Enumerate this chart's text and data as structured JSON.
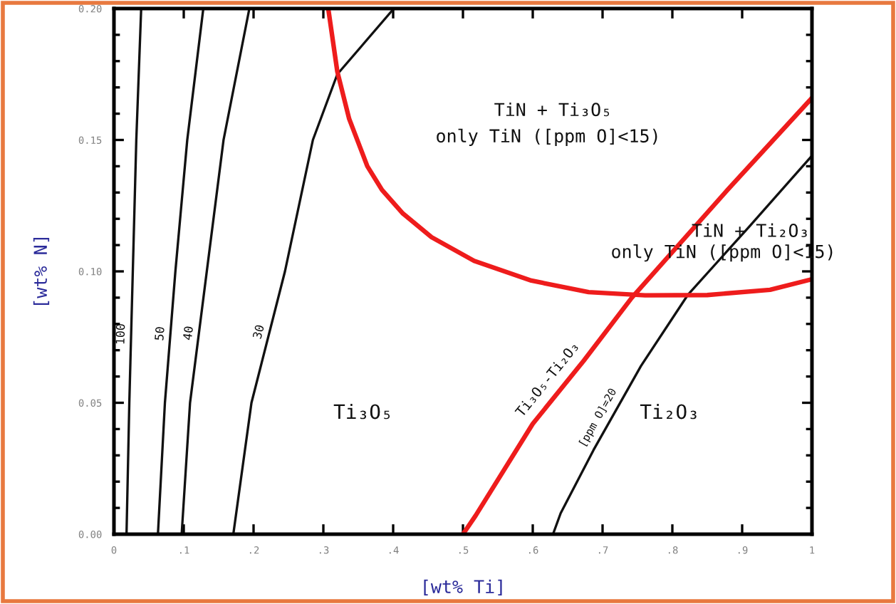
{
  "chart_data": {
    "type": "line",
    "xlabel": "[wt% Ti]",
    "ylabel": "[wt% N]",
    "xlim": [
      0,
      1
    ],
    "ylim": [
      0,
      0.2
    ],
    "xticks": [
      {
        "value": 0,
        "label": "0"
      },
      {
        "value": 0.1,
        "label": ".1"
      },
      {
        "value": 0.2,
        "label": ".2"
      },
      {
        "value": 0.3,
        "label": ".3"
      },
      {
        "value": 0.4,
        "label": ".4"
      },
      {
        "value": 0.5,
        "label": ".5"
      },
      {
        "value": 0.6,
        "label": ".6"
      },
      {
        "value": 0.7,
        "label": ".7"
      },
      {
        "value": 0.8,
        "label": ".8"
      },
      {
        "value": 0.9,
        "label": ".9"
      },
      {
        "value": 1,
        "label": "1"
      }
    ],
    "yticks": [
      {
        "value": 0,
        "label": "0.00"
      },
      {
        "value": 0.01,
        "label": null
      },
      {
        "value": 0.02,
        "label": null
      },
      {
        "value": 0.03,
        "label": null
      },
      {
        "value": 0.04,
        "label": null
      },
      {
        "value": 0.05,
        "label": "0.05"
      },
      {
        "value": 0.06,
        "label": null
      },
      {
        "value": 0.07,
        "label": null
      },
      {
        "value": 0.08,
        "label": null
      },
      {
        "value": 0.09,
        "label": null
      },
      {
        "value": 0.1,
        "label": "0.10"
      },
      {
        "value": 0.11,
        "label": null
      },
      {
        "value": 0.12,
        "label": null
      },
      {
        "value": 0.13,
        "label": null
      },
      {
        "value": 0.14,
        "label": null
      },
      {
        "value": 0.15,
        "label": "0.15"
      },
      {
        "value": 0.16,
        "label": null
      },
      {
        "value": 0.17,
        "label": null
      },
      {
        "value": 0.18,
        "label": null
      },
      {
        "value": 0.19,
        "label": null
      },
      {
        "value": 0.2,
        "label": "0.20"
      }
    ],
    "grid": false,
    "marker": "none",
    "line_style": "solid",
    "series": [
      {
        "name": "100",
        "color": "#111111",
        "x": [
          0.018,
          0.022,
          0.027,
          0.032,
          0.039
        ],
        "values": [
          0,
          0.05,
          0.1,
          0.15,
          0.2
        ]
      },
      {
        "name": "50",
        "color": "#111111",
        "x": [
          0.063,
          0.073,
          0.088,
          0.105,
          0.128
        ],
        "values": [
          0,
          0.05,
          0.1,
          0.15,
          0.2
        ]
      },
      {
        "name": "40",
        "color": "#111111",
        "x": [
          0.097,
          0.109,
          0.133,
          0.157,
          0.194
        ],
        "values": [
          0,
          0.05,
          0.1,
          0.15,
          0.2
        ]
      },
      {
        "name": "30",
        "color": "#111111",
        "x": [
          0.171,
          0.197,
          0.245,
          0.285,
          0.32,
          0.401
        ],
        "values": [
          0,
          0.05,
          0.1,
          0.15,
          0.175,
          0.2
        ]
      },
      {
        "name": "[ppm O]=20",
        "color": "#111111",
        "x": [
          0.629,
          0.64,
          0.687,
          0.755,
          0.822,
          0.91,
          1.0
        ],
        "values": [
          0,
          0.008,
          0.032,
          0.064,
          0.091,
          0.117,
          0.144
        ]
      },
      {
        "name": "Ti₃O₅-Ti₂O₃",
        "color": "#ee1c1c",
        "x": [
          0.5,
          0.518,
          0.6,
          0.673,
          0.742,
          0.879,
          1.0
        ],
        "values": [
          0,
          0.007,
          0.042,
          0.066,
          0.09,
          0.131,
          0.166
        ]
      },
      {
        "color": "#ee1c1c",
        "x": [
          0.307,
          0.32,
          0.337,
          0.363,
          0.384,
          0.414,
          0.455,
          0.516,
          0.598,
          0.68,
          0.761,
          0.85,
          0.94,
          1.0
        ],
        "values": [
          0.2,
          0.176,
          0.158,
          0.14,
          0.131,
          0.122,
          0.113,
          0.104,
          0.0965,
          0.0921,
          0.0909,
          0.091,
          0.093,
          0.097
        ]
      }
    ],
    "annotations": [
      "TiN + Ti₃O₅",
      "only TiN ([ppm O]<15)",
      "TiN + Ti₂O₃",
      "only TiN ([ppm O]<15)",
      "Ti₃O₅",
      "Ti₂O₃"
    ]
  }
}
